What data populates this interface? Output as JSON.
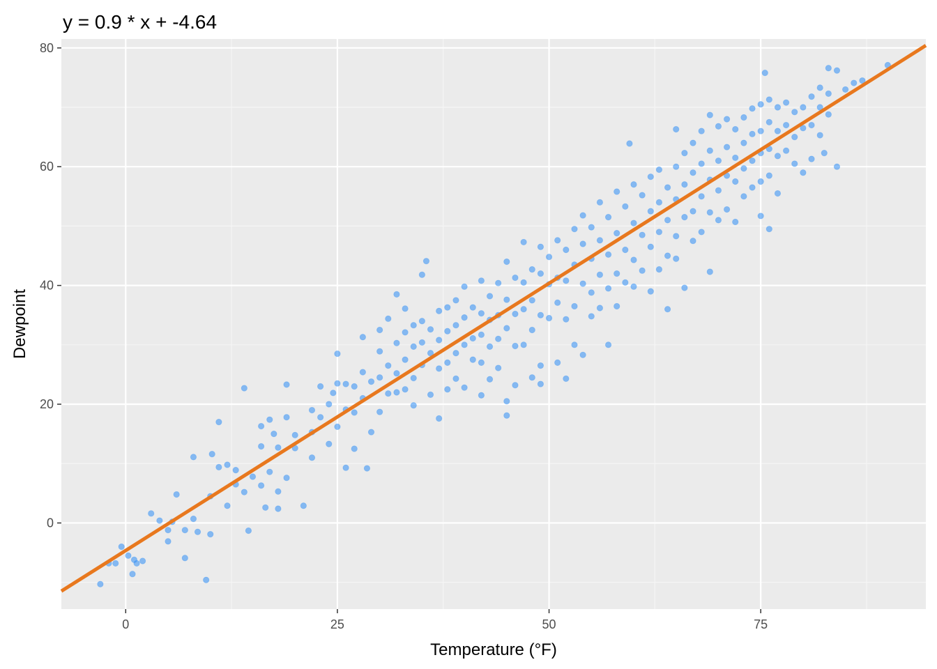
{
  "chart_data": {
    "type": "scatter",
    "title": "y = 0.9 * x + -4.64",
    "xlabel": "Temperature (°F)",
    "ylabel": "Dewpoint",
    "xlim": [
      -7.6,
      94.5
    ],
    "ylim": [
      -14.5,
      81.5
    ],
    "x_ticks": [
      0,
      25,
      50,
      75
    ],
    "x_tick_labels": [
      "0",
      "25",
      "50",
      "75"
    ],
    "y_ticks": [
      0,
      20,
      40,
      60,
      80
    ],
    "y_tick_labels": [
      "0",
      "20",
      "40",
      "60",
      "80"
    ],
    "grid": true,
    "fit_line": {
      "slope": 0.9,
      "intercept": -4.64,
      "color": "#e8781e"
    },
    "point_color": "#2f8ef5",
    "panel_color": "#ebebeb",
    "series": [
      {
        "name": "",
        "values": [
          [
            -3.0,
            -10.3
          ],
          [
            -2.0,
            -6.8
          ],
          [
            -1.2,
            -6.8
          ],
          [
            -0.5,
            -4.0
          ],
          [
            0.3,
            -5.5
          ],
          [
            0.8,
            -8.6
          ],
          [
            1.0,
            -6.2
          ],
          [
            1.3,
            -6.8
          ],
          [
            2.0,
            -6.4
          ],
          [
            3.0,
            1.6
          ],
          [
            4.0,
            0.4
          ],
          [
            5.0,
            -1.2
          ],
          [
            5.0,
            -3.1
          ],
          [
            5.5,
            0.2
          ],
          [
            6.0,
            4.8
          ],
          [
            7.0,
            -1.2
          ],
          [
            7.0,
            -5.9
          ],
          [
            8.0,
            11.1
          ],
          [
            8.0,
            0.7
          ],
          [
            8.5,
            -1.5
          ],
          [
            9.5,
            -9.6
          ],
          [
            10.0,
            4.5
          ],
          [
            10.0,
            -1.9
          ],
          [
            10.2,
            11.6
          ],
          [
            11.0,
            9.4
          ],
          [
            11.0,
            17.0
          ],
          [
            12.0,
            2.9
          ],
          [
            12.0,
            9.8
          ],
          [
            13.0,
            6.5
          ],
          [
            13.0,
            8.9
          ],
          [
            14.0,
            22.7
          ],
          [
            14.0,
            5.2
          ],
          [
            14.5,
            -1.3
          ],
          [
            15.0,
            7.8
          ],
          [
            16.0,
            12.9
          ],
          [
            16.0,
            16.3
          ],
          [
            16.0,
            6.3
          ],
          [
            16.5,
            2.6
          ],
          [
            17.0,
            17.4
          ],
          [
            17.0,
            8.6
          ],
          [
            17.5,
            15.0
          ],
          [
            18.0,
            12.7
          ],
          [
            18.0,
            5.3
          ],
          [
            18.0,
            2.4
          ],
          [
            19.0,
            23.3
          ],
          [
            19.0,
            17.8
          ],
          [
            19.0,
            7.6
          ],
          [
            20.0,
            14.8
          ],
          [
            20.0,
            12.6
          ],
          [
            21.0,
            2.9
          ],
          [
            22.0,
            19.0
          ],
          [
            22.0,
            11.0
          ],
          [
            22.0,
            15.3
          ],
          [
            23.0,
            23.0
          ],
          [
            23.0,
            17.8
          ],
          [
            24.0,
            20.0
          ],
          [
            24.0,
            13.3
          ],
          [
            24.5,
            21.9
          ],
          [
            25.0,
            28.5
          ],
          [
            25.0,
            23.5
          ],
          [
            25.0,
            16.2
          ],
          [
            26.0,
            23.4
          ],
          [
            26.0,
            19.1
          ],
          [
            26.0,
            9.3
          ],
          [
            27.0,
            23.0
          ],
          [
            27.0,
            18.6
          ],
          [
            27.0,
            12.5
          ],
          [
            28.0,
            31.3
          ],
          [
            28.0,
            25.4
          ],
          [
            28.0,
            21.0
          ],
          [
            28.5,
            9.2
          ],
          [
            29.0,
            23.8
          ],
          [
            29.0,
            15.3
          ],
          [
            30.0,
            32.5
          ],
          [
            30.0,
            28.9
          ],
          [
            30.0,
            24.5
          ],
          [
            30.0,
            18.7
          ],
          [
            31.0,
            34.4
          ],
          [
            31.0,
            26.5
          ],
          [
            31.0,
            21.8
          ],
          [
            32.0,
            38.5
          ],
          [
            32.0,
            30.3
          ],
          [
            32.0,
            25.2
          ],
          [
            32.0,
            22.0
          ],
          [
            33.0,
            36.1
          ],
          [
            33.0,
            32.1
          ],
          [
            33.0,
            27.5
          ],
          [
            33.0,
            22.5
          ],
          [
            34.0,
            33.3
          ],
          [
            34.0,
            29.7
          ],
          [
            34.0,
            24.4
          ],
          [
            34.0,
            19.8
          ],
          [
            35.0,
            41.8
          ],
          [
            35.0,
            34.0
          ],
          [
            35.0,
            30.4
          ],
          [
            35.0,
            26.6
          ],
          [
            35.5,
            44.1
          ],
          [
            36.0,
            32.6
          ],
          [
            36.0,
            28.6
          ],
          [
            36.0,
            21.6
          ],
          [
            37.0,
            35.7
          ],
          [
            37.0,
            30.8
          ],
          [
            37.0,
            26.0
          ],
          [
            37.0,
            17.6
          ],
          [
            38.0,
            36.3
          ],
          [
            38.0,
            32.3
          ],
          [
            38.0,
            27.0
          ],
          [
            38.0,
            22.5
          ],
          [
            39.0,
            37.5
          ],
          [
            39.0,
            33.3
          ],
          [
            39.0,
            28.6
          ],
          [
            39.0,
            24.3
          ],
          [
            40.0,
            39.8
          ],
          [
            40.0,
            34.6
          ],
          [
            40.0,
            30.0
          ],
          [
            40.0,
            22.8
          ],
          [
            41.0,
            36.3
          ],
          [
            41.0,
            31.1
          ],
          [
            41.0,
            27.5
          ],
          [
            42.0,
            40.8
          ],
          [
            42.0,
            35.3
          ],
          [
            42.0,
            31.7
          ],
          [
            42.0,
            27.0
          ],
          [
            42.0,
            21.5
          ],
          [
            43.0,
            38.2
          ],
          [
            43.0,
            34.2
          ],
          [
            43.0,
            29.7
          ],
          [
            43.0,
            24.2
          ],
          [
            44.0,
            40.4
          ],
          [
            44.0,
            35.0
          ],
          [
            44.0,
            31.0
          ],
          [
            44.0,
            26.1
          ],
          [
            45.0,
            44.0
          ],
          [
            45.0,
            37.6
          ],
          [
            45.0,
            32.8
          ],
          [
            45.0,
            20.5
          ],
          [
            45.0,
            18.1
          ],
          [
            46.0,
            41.3
          ],
          [
            46.0,
            35.2
          ],
          [
            46.0,
            29.8
          ],
          [
            46.0,
            23.2
          ],
          [
            47.0,
            47.3
          ],
          [
            47.0,
            40.5
          ],
          [
            47.0,
            36.0
          ],
          [
            47.0,
            30.0
          ],
          [
            48.0,
            42.7
          ],
          [
            48.0,
            37.5
          ],
          [
            48.0,
            32.5
          ],
          [
            48.0,
            24.5
          ],
          [
            49.0,
            46.5
          ],
          [
            49.0,
            42.0
          ],
          [
            49.0,
            35.0
          ],
          [
            49.0,
            26.5
          ],
          [
            49.0,
            23.4
          ],
          [
            50.0,
            44.8
          ],
          [
            50.0,
            40.2
          ],
          [
            50.0,
            34.5
          ],
          [
            51.0,
            47.6
          ],
          [
            51.0,
            41.3
          ],
          [
            51.0,
            37.1
          ],
          [
            51.0,
            27.0
          ],
          [
            52.0,
            46.0
          ],
          [
            52.0,
            40.8
          ],
          [
            52.0,
            34.3
          ],
          [
            52.0,
            24.3
          ],
          [
            53.0,
            49.5
          ],
          [
            53.0,
            43.5
          ],
          [
            53.0,
            36.5
          ],
          [
            53.0,
            30.0
          ],
          [
            54.0,
            51.8
          ],
          [
            54.0,
            47.0
          ],
          [
            54.0,
            40.3
          ],
          [
            54.0,
            28.3
          ],
          [
            55.0,
            49.8
          ],
          [
            55.0,
            44.5
          ],
          [
            55.0,
            38.8
          ],
          [
            55.0,
            34.8
          ],
          [
            56.0,
            54.0
          ],
          [
            56.0,
            47.6
          ],
          [
            56.0,
            41.8
          ],
          [
            56.0,
            36.2
          ],
          [
            57.0,
            51.5
          ],
          [
            57.0,
            45.2
          ],
          [
            57.0,
            39.5
          ],
          [
            57.0,
            30.0
          ],
          [
            58.0,
            55.8
          ],
          [
            58.0,
            48.8
          ],
          [
            58.0,
            42.0
          ],
          [
            58.0,
            36.5
          ],
          [
            59.0,
            53.3
          ],
          [
            59.0,
            46.0
          ],
          [
            59.0,
            40.5
          ],
          [
            59.5,
            63.9
          ],
          [
            60.0,
            57.0
          ],
          [
            60.0,
            50.5
          ],
          [
            60.0,
            44.3
          ],
          [
            60.0,
            39.8
          ],
          [
            61.0,
            55.2
          ],
          [
            61.0,
            48.5
          ],
          [
            61.0,
            42.5
          ],
          [
            62.0,
            58.3
          ],
          [
            62.0,
            52.5
          ],
          [
            62.0,
            46.5
          ],
          [
            62.0,
            39.0
          ],
          [
            63.0,
            59.5
          ],
          [
            63.0,
            54.0
          ],
          [
            63.0,
            49.0
          ],
          [
            63.0,
            42.7
          ],
          [
            64.0,
            56.5
          ],
          [
            64.0,
            51.0
          ],
          [
            64.0,
            45.0
          ],
          [
            64.0,
            36.0
          ],
          [
            65.0,
            66.3
          ],
          [
            65.0,
            60.0
          ],
          [
            65.0,
            54.5
          ],
          [
            65.0,
            48.3
          ],
          [
            65.0,
            44.5
          ],
          [
            66.0,
            62.3
          ],
          [
            66.0,
            57.0
          ],
          [
            66.0,
            51.5
          ],
          [
            66.0,
            39.6
          ],
          [
            67.0,
            64.0
          ],
          [
            67.0,
            59.0
          ],
          [
            67.0,
            52.5
          ],
          [
            67.0,
            47.5
          ],
          [
            68.0,
            66.0
          ],
          [
            68.0,
            60.5
          ],
          [
            68.0,
            55.0
          ],
          [
            68.0,
            49.0
          ],
          [
            69.0,
            68.7
          ],
          [
            69.0,
            62.7
          ],
          [
            69.0,
            57.8
          ],
          [
            69.0,
            52.3
          ],
          [
            69.0,
            42.3
          ],
          [
            70.0,
            66.8
          ],
          [
            70.0,
            61.0
          ],
          [
            70.0,
            56.0
          ],
          [
            70.0,
            51.0
          ],
          [
            71.0,
            68.0
          ],
          [
            71.0,
            63.3
          ],
          [
            71.0,
            58.5
          ],
          [
            71.0,
            52.8
          ],
          [
            72.0,
            66.3
          ],
          [
            72.0,
            61.5
          ],
          [
            72.0,
            57.5
          ],
          [
            72.0,
            50.7
          ],
          [
            73.0,
            68.3
          ],
          [
            73.0,
            64.0
          ],
          [
            73.0,
            59.7
          ],
          [
            73.0,
            55.0
          ],
          [
            74.0,
            69.8
          ],
          [
            74.0,
            65.5
          ],
          [
            74.0,
            61.0
          ],
          [
            74.0,
            56.5
          ],
          [
            75.0,
            70.5
          ],
          [
            75.0,
            66.0
          ],
          [
            75.0,
            62.3
          ],
          [
            75.0,
            57.5
          ],
          [
            75.0,
            51.7
          ],
          [
            75.5,
            75.8
          ],
          [
            76.0,
            71.3
          ],
          [
            76.0,
            67.5
          ],
          [
            76.0,
            63.0
          ],
          [
            76.0,
            58.5
          ],
          [
            76.0,
            49.5
          ],
          [
            77.0,
            70.0
          ],
          [
            77.0,
            66.0
          ],
          [
            77.0,
            61.8
          ],
          [
            77.0,
            55.5
          ],
          [
            78.0,
            70.8
          ],
          [
            78.0,
            67.0
          ],
          [
            78.0,
            62.7
          ],
          [
            79.0,
            69.2
          ],
          [
            79.0,
            65.0
          ],
          [
            79.0,
            60.5
          ],
          [
            80.0,
            70.0
          ],
          [
            80.0,
            66.5
          ],
          [
            80.0,
            59.0
          ],
          [
            81.0,
            71.8
          ],
          [
            81.0,
            67.0
          ],
          [
            81.0,
            61.3
          ],
          [
            82.0,
            73.3
          ],
          [
            82.0,
            70.0
          ],
          [
            82.0,
            65.3
          ],
          [
            82.5,
            62.3
          ],
          [
            83.0,
            76.6
          ],
          [
            83.0,
            72.3
          ],
          [
            83.0,
            68.8
          ],
          [
            84.0,
            76.2
          ],
          [
            84.0,
            60.0
          ],
          [
            85.0,
            73.0
          ],
          [
            86.0,
            74.1
          ],
          [
            87.0,
            74.5
          ],
          [
            90.0,
            77.1
          ]
        ]
      }
    ]
  }
}
